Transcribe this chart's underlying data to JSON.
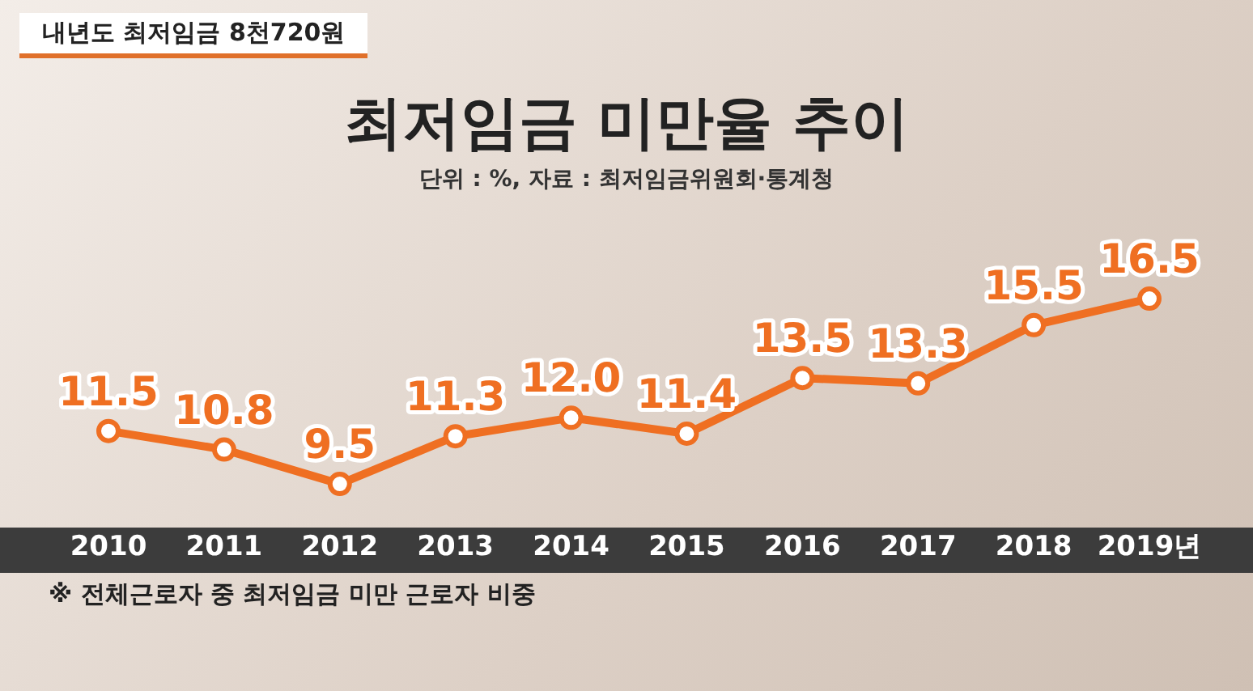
{
  "chart_data": {
    "type": "line",
    "title": "최저임금 미만율 추이",
    "subtitle": "단위 : %, 자료 : 최저임금위원회·통계청",
    "annotations": [
      "내년도 최저임금 8천720원",
      "※ 전체근로자 중 최저임금 미만 근로자 비중"
    ],
    "categories": [
      "2010",
      "2011",
      "2012",
      "2013",
      "2014",
      "2015",
      "2016",
      "2017",
      "2018",
      "2019년"
    ],
    "series": [
      {
        "color": "#ef6f22",
        "values": [
          11.5,
          10.8,
          9.5,
          11.3,
          12.0,
          11.4,
          13.5,
          13.3,
          15.5,
          16.5
        ],
        "value_labels": [
          "11.5",
          "10.8",
          "9.5",
          "11.3",
          "12.0",
          "11.4",
          "13.5",
          "13.3",
          "15.5",
          "16.5"
        ]
      }
    ],
    "tick_labels": "x",
    "grid": false,
    "legend": false,
    "marker": "circle",
    "line_style": "solid"
  }
}
